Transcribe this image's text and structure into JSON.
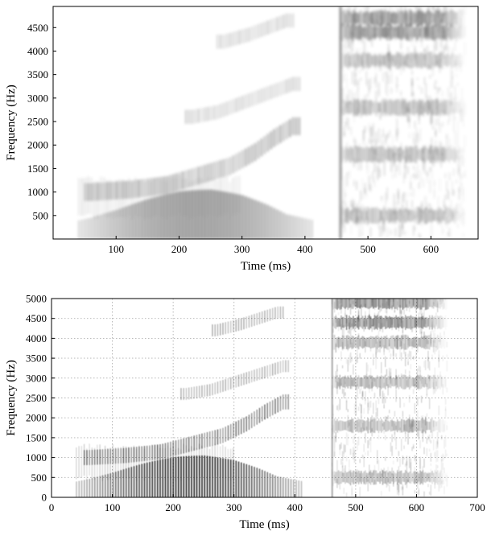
{
  "chart_data": [
    {
      "type": "heatmap",
      "subtype": "spectrogram (smoothed)",
      "xlabel": "Time (ms)",
      "ylabel": "Frequency (Hz)",
      "xlim": [
        0,
        675
      ],
      "ylim": [
        0,
        4950
      ],
      "xticks": [
        100,
        200,
        300,
        400,
        500,
        600
      ],
      "yticks": [
        500,
        1000,
        1500,
        2000,
        2500,
        3000,
        3500,
        4000,
        4500
      ],
      "grid": false,
      "colormap": "gray_r",
      "segments": [
        {
          "name": "voiced",
          "x_start": 40,
          "x_end": 410
        },
        {
          "name": "fricative",
          "x_start": 455,
          "x_end": 655
        }
      ],
      "formant_tracks": [
        {
          "x": [
            60,
            100,
            150,
            200,
            250,
            300,
            340,
            370
          ],
          "y": [
            250,
            300,
            420,
            520,
            560,
            500,
            380,
            260
          ]
        },
        {
          "x": [
            60,
            120,
            180,
            230,
            280,
            320,
            350,
            380
          ],
          "y": [
            1000,
            1050,
            1150,
            1350,
            1550,
            1850,
            2150,
            2400
          ]
        },
        {
          "x": [
            220,
            260,
            300,
            330,
            360,
            380
          ],
          "y": [
            2600,
            2700,
            2900,
            3050,
            3200,
            3300
          ]
        },
        {
          "x": [
            270,
            310,
            340,
            370
          ],
          "y": [
            4200,
            4350,
            4500,
            4650
          ]
        }
      ],
      "fricative_bands": [
        4700,
        4400,
        3800,
        2800,
        1800,
        500
      ]
    },
    {
      "type": "heatmap",
      "subtype": "spectrogram (reassigned)",
      "xlabel": "Time (ms)",
      "ylabel": "Frequency (Hz)",
      "xlim": [
        0,
        700
      ],
      "ylim": [
        0,
        5000
      ],
      "xticks": [
        0,
        100,
        200,
        300,
        400,
        500,
        600,
        700
      ],
      "yticks": [
        0,
        500,
        1000,
        1500,
        2000,
        2500,
        3000,
        3500,
        4000,
        4500,
        5000
      ],
      "grid": true,
      "colormap": "gray_r",
      "segments": [
        {
          "name": "voiced",
          "x_start": 40,
          "x_end": 410
        },
        {
          "name": "fricative",
          "x_start": 460,
          "x_end": 650
        }
      ],
      "formant_tracks": [
        {
          "x": [
            60,
            100,
            150,
            200,
            250,
            300,
            340,
            370
          ],
          "y": [
            250,
            300,
            420,
            520,
            560,
            500,
            380,
            260
          ]
        },
        {
          "x": [
            60,
            120,
            180,
            230,
            280,
            320,
            350,
            380
          ],
          "y": [
            1000,
            1050,
            1150,
            1350,
            1550,
            1850,
            2150,
            2400
          ]
        },
        {
          "x": [
            220,
            260,
            300,
            330,
            360,
            380
          ],
          "y": [
            2600,
            2700,
            2900,
            3050,
            3200,
            3300
          ]
        },
        {
          "x": [
            270,
            310,
            340,
            370
          ],
          "y": [
            4200,
            4350,
            4500,
            4650
          ]
        }
      ],
      "fricative_bands": [
        4900,
        4400,
        3900,
        2900,
        1800,
        500
      ]
    }
  ]
}
